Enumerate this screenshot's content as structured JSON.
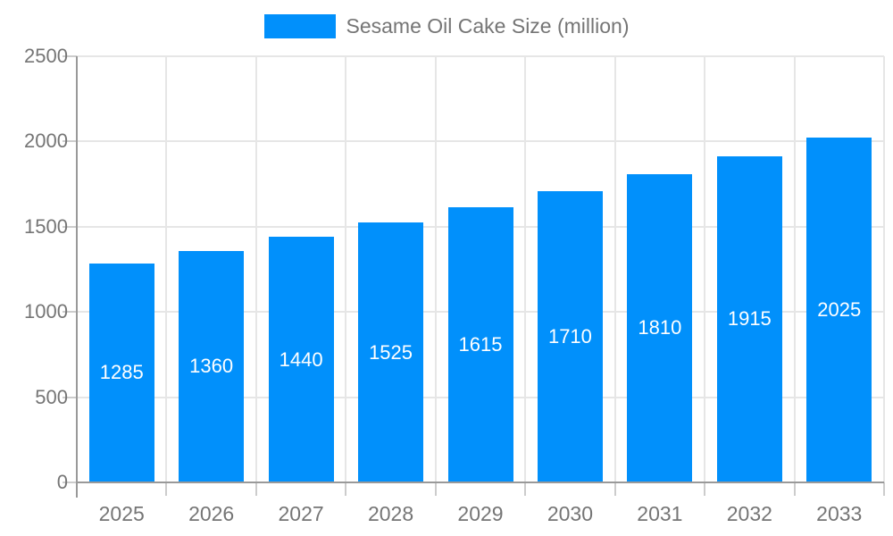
{
  "chart_data": {
    "type": "bar",
    "title": "Sesame Oil Cake Size (million)",
    "legend": [
      "Sesame Oil Cake Size (million)"
    ],
    "legend_position": "top-center",
    "categories": [
      "2025",
      "2026",
      "2027",
      "2028",
      "2029",
      "2030",
      "2031",
      "2032",
      "2033"
    ],
    "series": [
      {
        "name": "Sesame Oil Cake Size (million)",
        "values": [
          1285,
          1360,
          1440,
          1525,
          1615,
          1710,
          1810,
          1915,
          2025
        ]
      }
    ],
    "xlabel": "",
    "ylabel": "",
    "ylim": [
      0,
      2500
    ],
    "yticks": [
      0,
      500,
      1000,
      1500,
      2000,
      2500
    ],
    "grid": true,
    "value_labels": "inside-center-white"
  },
  "colors": {
    "bar": "#0190fb",
    "label_text": "#757575",
    "grid_line": "#e6e6e6",
    "axis_line": "#999999",
    "tick_mark": "#cccccc",
    "value_label_text": "#ffffff",
    "background": "#ffffff"
  }
}
